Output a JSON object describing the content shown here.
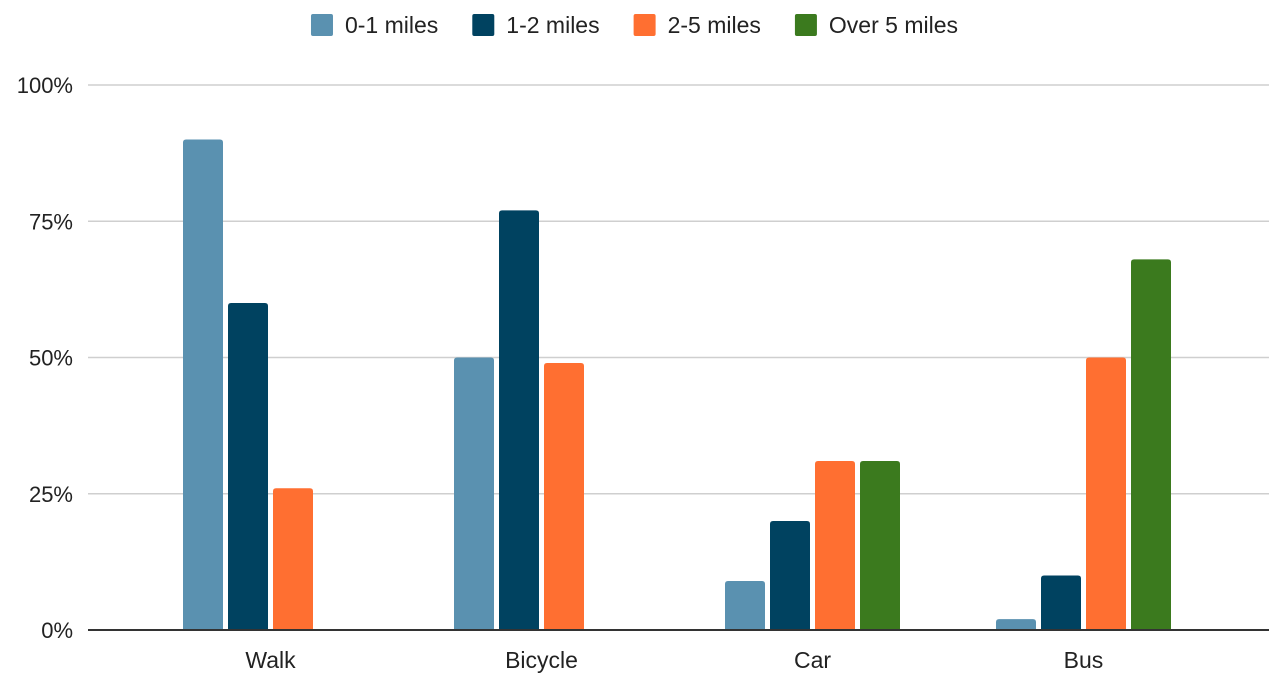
{
  "chart_data": {
    "type": "bar",
    "title": "",
    "xlabel": "",
    "ylabel": "",
    "categories": [
      "Walk",
      "Bicycle",
      "Car",
      "Bus"
    ],
    "series": [
      {
        "name": "0-1 miles",
        "color": "#5a91b0",
        "values": [
          90,
          50,
          9,
          2
        ]
      },
      {
        "name": "1-2 miles",
        "color": "#004260",
        "values": [
          60,
          77,
          20,
          10
        ]
      },
      {
        "name": "2-5 miles",
        "color": "#ff6f31",
        "values": [
          26,
          49,
          31,
          50
        ]
      },
      {
        "name": "Over 5 miles",
        "color": "#3b7a1e",
        "values": [
          null,
          null,
          31,
          68
        ]
      }
    ],
    "ylim": [
      0,
      100
    ],
    "yticks": [
      {
        "value": 0,
        "label": "0%"
      },
      {
        "value": 25,
        "label": "25%"
      },
      {
        "value": 50,
        "label": "50%"
      },
      {
        "value": 75,
        "label": "75%"
      },
      {
        "value": 100,
        "label": "100%"
      }
    ],
    "grid": true,
    "legend_position": "top"
  }
}
